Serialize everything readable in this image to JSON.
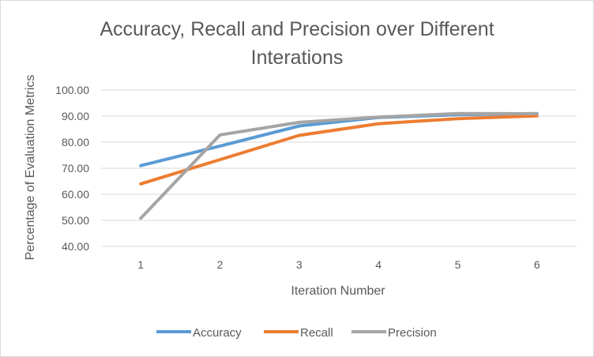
{
  "chart_data": {
    "type": "line",
    "title_lines": [
      "Accuracy, Recall and Precision over Different",
      "Interations"
    ],
    "xlabel": "Iteration Number",
    "ylabel": "Percentage of Evaluation Metrics",
    "categories": [
      "1",
      "2",
      "3",
      "4",
      "5",
      "6"
    ],
    "ylim": [
      40,
      100
    ],
    "yticks": [
      "40.00",
      "50.00",
      "60.00",
      "70.00",
      "80.00",
      "90.00",
      "100.00"
    ],
    "grid": true,
    "legend": "bottom",
    "series": [
      {
        "name": "Accuracy",
        "color": "#5b9bd5",
        "values": [
          71,
          78.5,
          86.2,
          89.5,
          90.5,
          91
        ]
      },
      {
        "name": "Recall",
        "color": "#ed7d31",
        "values": [
          64,
          73.3,
          82.6,
          87.1,
          89,
          90.1
        ]
      },
      {
        "name": "Precision",
        "color": "#a5a5a5",
        "values": [
          50.8,
          82.8,
          87.6,
          89.6,
          91,
          90.9
        ]
      }
    ]
  }
}
